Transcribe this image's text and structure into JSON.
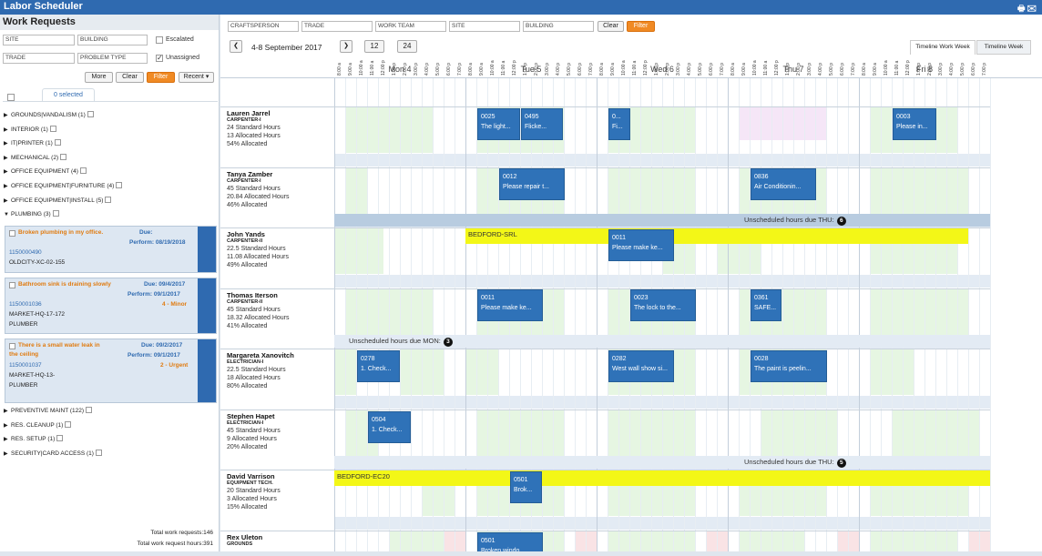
{
  "app": {
    "title": "Labor Scheduler"
  },
  "left": {
    "title": "Work Requests",
    "filters": {
      "site": "SITE",
      "building": "BUILDING",
      "trade": "TRADE",
      "problem_type": "PROBLEM TYPE",
      "escalated": "Escalated",
      "unassigned": "Unassigned"
    },
    "buttons": {
      "more": "More",
      "clear": "Clear",
      "filter": "Filter",
      "recent": "Recent"
    },
    "selected_tab": "0 selected",
    "categories_top": [
      "GROUNDS|VANDALISM (1)",
      "INTERIOR (1)",
      "IT|PRINTER (1)",
      "MECHANICAL (2)",
      "OFFICE EQUIPMENT (4)",
      "OFFICE EQUIPMENT|FURNITURE (4)",
      "OFFICE EQUIPMENT|INSTALL (5)",
      "PLUMBING (3)"
    ],
    "cards": [
      {
        "title1": "Broken plumbing in my office.",
        "title2": "",
        "due_label": "Due:",
        "due": "",
        "perform_label": "Perform:",
        "perform": "08/19/2018",
        "id": "1150000490",
        "loc1": "OLDCITY-XC-02-155",
        "loc2": "",
        "priority": ""
      },
      {
        "title1": "Bathroom sink is draining slowly",
        "title2": "",
        "due_label": "Due:",
        "due": "09/4/2017",
        "perform_label": "Perform:",
        "perform": "09/1/2017",
        "id": "1150001036",
        "loc1": "MARKET-HQ-17-172",
        "loc2": "PLUMBER",
        "priority": "4 - Minor"
      },
      {
        "title1": "There is a small water leak in",
        "title2": "the ceiling",
        "due_label": "Due:",
        "due": "09/2/2017",
        "perform_label": "Perform:",
        "perform": "09/1/2017",
        "id": "1150001037",
        "loc1": "MARKET-HQ-13-",
        "loc2": "PLUMBER",
        "priority": "2 - Urgent"
      }
    ],
    "categories_bottom": [
      "PREVENTIVE MAINT (122)",
      "RES. CLEANUP (1)",
      "RES. SETUP (1)",
      "SECURITY|CARD ACCESS (1)"
    ],
    "totals": {
      "requests": "Total work requests:146",
      "hours": "Total work request hours:391"
    }
  },
  "top_filters": {
    "craftsperson": "CRAFTSPERSON",
    "trade": "TRADE",
    "work_team": "WORK TEAM",
    "site": "SITE",
    "building": "BUILDING",
    "clear": "Clear",
    "filter": "Filter"
  },
  "nav": {
    "prev": "❮",
    "range": "4-8 September 2017",
    "next": "❯",
    "opt12": "12",
    "opt24": "24"
  },
  "view_tabs": {
    "work_week": "Timeline Work Week",
    "week": "Timeline Week"
  },
  "days": [
    "Mon 4",
    "Tue 5",
    "Wed 6",
    "Thu 7",
    "Fri 8"
  ],
  "hours": [
    "8:00 a",
    "9:00 a",
    "10:00 a",
    "11:00 a",
    "12:00 p",
    "1:00 p",
    "2:00 p",
    "3:00 p",
    "4:00 p",
    "5:00 p",
    "6:00 p",
    "7:00 p"
  ],
  "resources": [
    {
      "name": "Lauren Jarrel",
      "role": "CARPENTER-I",
      "std": "24 Standard Hours",
      "alloc": "13 Allocated Hours",
      "pct": "54% Allocated"
    },
    {
      "name": "Tanya Zamber",
      "role": "CARPENTER-I",
      "std": "45 Standard Hours",
      "alloc": "20.84 Allocated Hours",
      "pct": "46% Allocated"
    },
    {
      "name": "John Yands",
      "role": "CARPENTER-II",
      "std": "22.5 Standard Hours",
      "alloc": "11.08 Allocated Hours",
      "pct": "49% Allocated"
    },
    {
      "name": "Thomas Iterson",
      "role": "CARPENTER-II",
      "std": "45 Standard Hours",
      "alloc": "18.32 Allocated Hours",
      "pct": "41% Allocated"
    },
    {
      "name": "Margareta Xanovitch",
      "role": "ELECTRICIAN-I",
      "std": "22.5 Standard Hours",
      "alloc": "18 Allocated Hours",
      "pct": "80% Allocated"
    },
    {
      "name": "Stephen Hapet",
      "role": "ELECTRICIAN-I",
      "std": "45 Standard Hours",
      "alloc": "9 Allocated Hours",
      "pct": "20% Allocated"
    },
    {
      "name": "David Varrison",
      "role": "EQUIPMENT TECH.",
      "std": "20 Standard Hours",
      "alloc": "3 Allocated Hours",
      "pct": "15% Allocated"
    },
    {
      "name": "Rex Uleton",
      "role": "GROUNDS",
      "std": "",
      "alloc": "",
      "pct": ""
    }
  ],
  "appointments": [
    {
      "l1": "0025",
      "l2": "The light..."
    },
    {
      "l1": "0495",
      "l2": "Flicke..."
    },
    {
      "l1": "0...",
      "l2": "Fi..."
    },
    {
      "l1": "0003",
      "l2": "Please in..."
    },
    {
      "l1": "0012",
      "l2": "Please repair t..."
    },
    {
      "l1": "0836",
      "l2": "Air Conditionin..."
    },
    {
      "l1": "0011",
      "l2": "Please make ke..."
    },
    {
      "l1": "0011",
      "l2": "Please make ke..."
    },
    {
      "l1": "0023",
      "l2": "The lock to the..."
    },
    {
      "l1": "0361",
      "l2": "SAFE..."
    },
    {
      "l1": "0278",
      "l2": "1. Check..."
    },
    {
      "l1": "0282",
      "l2": "West wall show si..."
    },
    {
      "l1": "0028",
      "l2": "The paint is peelin..."
    },
    {
      "l1": "0504",
      "l2": "1. Check..."
    },
    {
      "l1": "0501",
      "l2": "Brok..."
    },
    {
      "l1": "0501",
      "l2": "Broken windo..."
    }
  ],
  "bars": {
    "bedford_srl": "BEDFORD-SRL",
    "bedford_ec20": "BEDFORD-EC20"
  },
  "unscheduled": [
    {
      "text": "Unscheduled hours due THU:",
      "count": "6"
    },
    {
      "text": "Unscheduled hours due MON:",
      "count": "3"
    },
    {
      "text": "Unscheduled hours due THU:",
      "count": "5"
    }
  ]
}
